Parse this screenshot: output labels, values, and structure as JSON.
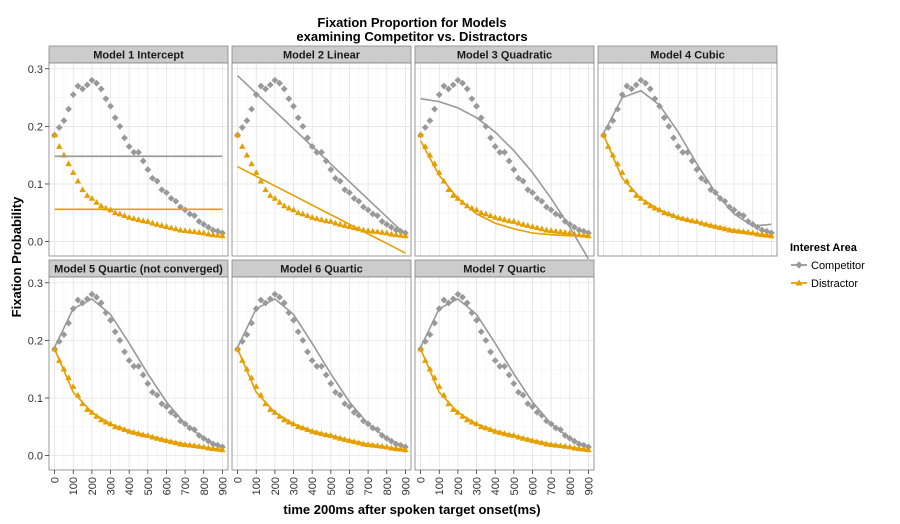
{
  "chart_data": {
    "type": "scatter",
    "title": "Fixation Proportion for Models",
    "subtitle": "examining Competitor vs. Distractors",
    "xlabel": "time 200ms after spoken target onset(ms)",
    "ylabel": "Fixation Probability",
    "xlim": [
      -30,
      930
    ],
    "ylim": [
      -0.025,
      0.31
    ],
    "xticks": [
      0,
      100,
      200,
      300,
      400,
      500,
      600,
      700,
      800,
      900
    ],
    "xtick_labels": [
      "0",
      "100",
      "200",
      "300",
      "400",
      "500",
      "600",
      "700",
      "800",
      "900"
    ],
    "yticks": [
      0.0,
      0.1,
      0.2,
      0.3
    ],
    "ytick_labels": [
      "0.0",
      "0.1",
      "0.2",
      "0.3"
    ],
    "grid": true,
    "legend": {
      "title": "Interest Area",
      "position": "right",
      "entries": [
        "Competitor",
        "Distractor"
      ]
    },
    "colors": {
      "Competitor": "#999999",
      "Distractor": "#E69F00"
    },
    "panel_titles": [
      "Model 1 Intercept",
      "Model 2 Linear",
      "Model 3 Quadratic",
      "Model 4 Cubic",
      "Model 5 Quartic (not converged)",
      "Model 6 Quartic",
      "Model 7 Quartic"
    ],
    "observed": {
      "x": [
        0,
        25,
        50,
        75,
        100,
        125,
        150,
        175,
        200,
        225,
        250,
        275,
        300,
        325,
        350,
        375,
        400,
        425,
        450,
        475,
        500,
        525,
        550,
        575,
        600,
        625,
        650,
        675,
        700,
        725,
        750,
        775,
        800,
        825,
        850,
        875,
        900
      ],
      "series": [
        {
          "name": "Competitor",
          "values": [
            0.185,
            0.198,
            0.21,
            0.23,
            0.255,
            0.27,
            0.265,
            0.272,
            0.28,
            0.275,
            0.265,
            0.248,
            0.235,
            0.215,
            0.2,
            0.18,
            0.165,
            0.155,
            0.155,
            0.14,
            0.125,
            0.11,
            0.105,
            0.09,
            0.085,
            0.075,
            0.07,
            0.06,
            0.055,
            0.048,
            0.045,
            0.035,
            0.03,
            0.025,
            0.02,
            0.018,
            0.015
          ]
        },
        {
          "name": "Distractor",
          "values": [
            0.185,
            0.165,
            0.15,
            0.135,
            0.12,
            0.105,
            0.09,
            0.08,
            0.075,
            0.068,
            0.062,
            0.058,
            0.055,
            0.05,
            0.048,
            0.045,
            0.042,
            0.04,
            0.038,
            0.036,
            0.035,
            0.032,
            0.03,
            0.028,
            0.026,
            0.024,
            0.022,
            0.02,
            0.019,
            0.018,
            0.017,
            0.016,
            0.015,
            0.013,
            0.012,
            0.011,
            0.01
          ]
        }
      ]
    },
    "fitted": [
      {
        "panel": "Model 1 Intercept",
        "x": [
          0,
          900
        ],
        "Competitor": [
          0.148,
          0.148
        ],
        "Distractor": [
          0.056,
          0.056
        ]
      },
      {
        "panel": "Model 2 Linear",
        "x": [
          0,
          900
        ],
        "Competitor": [
          0.288,
          0.012
        ],
        "Distractor": [
          0.13,
          -0.02
        ]
      },
      {
        "panel": "Model 3 Quadratic",
        "x": [
          0,
          100,
          200,
          300,
          400,
          500,
          600,
          700,
          800,
          900
        ],
        "Competitor": [
          0.248,
          0.243,
          0.232,
          0.215,
          0.19,
          0.158,
          0.12,
          0.075,
          0.025,
          -0.03
        ],
        "Distractor": [
          0.175,
          0.115,
          0.075,
          0.048,
          0.032,
          0.022,
          0.015,
          0.012,
          0.01,
          0.01
        ]
      },
      {
        "panel": "Model 4 Cubic",
        "x": [
          0,
          100,
          200,
          300,
          400,
          500,
          600,
          700,
          800,
          900
        ],
        "Competitor": [
          0.188,
          0.25,
          0.262,
          0.237,
          0.19,
          0.135,
          0.085,
          0.048,
          0.027,
          0.03
        ],
        "Distractor": [
          0.185,
          0.11,
          0.075,
          0.055,
          0.042,
          0.034,
          0.027,
          0.02,
          0.015,
          0.01
        ]
      },
      {
        "panel": "Model 5 Quartic (not converged)",
        "x": [
          0,
          100,
          200,
          300,
          400,
          500,
          600,
          700,
          800,
          900
        ],
        "Competitor": [
          0.188,
          0.255,
          0.272,
          0.245,
          0.195,
          0.142,
          0.093,
          0.055,
          0.03,
          0.015
        ],
        "Distractor": [
          0.185,
          0.11,
          0.075,
          0.055,
          0.043,
          0.035,
          0.027,
          0.02,
          0.015,
          0.01
        ]
      },
      {
        "panel": "Model 6 Quartic",
        "x": [
          0,
          100,
          200,
          300,
          400,
          500,
          600,
          700,
          800,
          900
        ],
        "Competitor": [
          0.188,
          0.255,
          0.272,
          0.245,
          0.195,
          0.142,
          0.093,
          0.055,
          0.03,
          0.015
        ],
        "Distractor": [
          0.185,
          0.11,
          0.075,
          0.055,
          0.043,
          0.035,
          0.027,
          0.02,
          0.015,
          0.01
        ]
      },
      {
        "panel": "Model 7 Quartic",
        "x": [
          0,
          100,
          200,
          300,
          400,
          500,
          600,
          700,
          800,
          900
        ],
        "Competitor": [
          0.188,
          0.255,
          0.272,
          0.245,
          0.195,
          0.142,
          0.093,
          0.055,
          0.03,
          0.015
        ],
        "Distractor": [
          0.185,
          0.11,
          0.075,
          0.055,
          0.043,
          0.035,
          0.027,
          0.02,
          0.015,
          0.01
        ]
      }
    ]
  }
}
